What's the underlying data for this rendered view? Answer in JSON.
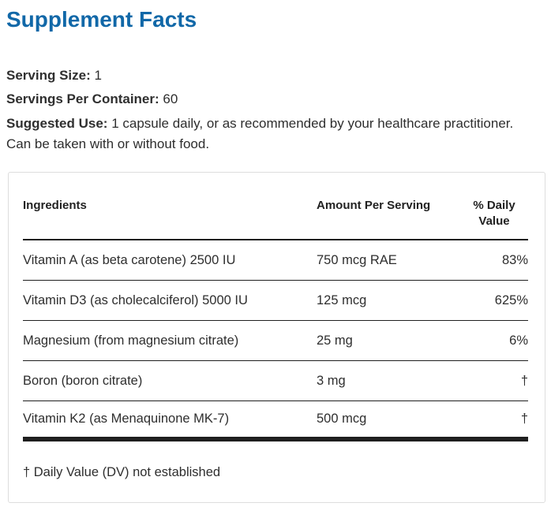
{
  "page": {
    "title": "Supplement Facts"
  },
  "meta": {
    "serving_size_label": "Serving Size:",
    "serving_size_value": "1",
    "servings_per_container_label": "Servings Per Container:",
    "servings_per_container_value": "60",
    "suggested_use_label": "Suggested Use:",
    "suggested_use_text": "1 capsule daily, or as recommended by your healthcare practitioner. Can be taken with or without food."
  },
  "table": {
    "headers": {
      "ingredients": "Ingredients",
      "amount": "Amount Per Serving",
      "daily_value": "% Daily Value"
    },
    "rows": [
      {
        "ingredient": "Vitamin A (as beta carotene) 2500 IU",
        "amount": "750 mcg RAE",
        "daily_value": "83%"
      },
      {
        "ingredient": "Vitamin D3 (as cholecalciferol) 5000 IU",
        "amount": "125 mcg",
        "daily_value": "625%"
      },
      {
        "ingredient": "Magnesium (from magnesium citrate)",
        "amount": "25 mg",
        "daily_value": "6%"
      },
      {
        "ingredient": "Boron (boron citrate)",
        "amount": "3 mg",
        "daily_value": "†"
      },
      {
        "ingredient": "Vitamin K2 (as Menaquinone MK-7)",
        "amount": "500 mcg",
        "daily_value": "†"
      }
    ],
    "footnote": "† Daily Value (DV) not established"
  },
  "colors": {
    "title-blue": "#1168a8",
    "rule-dark": "#1f1f1f",
    "box-border": "#dddddd",
    "text-dark": "#2e2e2e"
  }
}
